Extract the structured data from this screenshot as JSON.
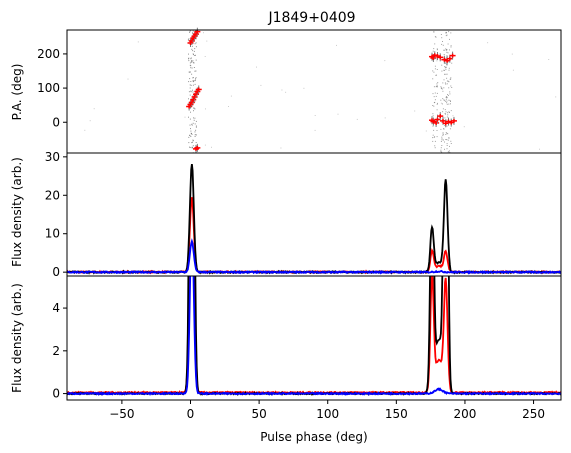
{
  "chart_data": {
    "type": "line",
    "title": "J1849+0409",
    "xlabel": "Pulse phase (deg)",
    "xlim": [
      -90,
      270
    ],
    "xticks": [
      -50,
      0,
      50,
      100,
      150,
      200,
      250
    ],
    "panels": [
      {
        "name": "pa",
        "ylabel": "P.A. (deg)",
        "ylim": [
          -90,
          270
        ],
        "yticks": [
          0,
          100,
          200
        ],
        "series": [
          {
            "label_key": "pa_points",
            "color": "#ff0000",
            "points": [
              [
                0,
                232
              ],
              [
                1,
                238
              ],
              [
                2,
                246
              ],
              [
                3,
                252
              ],
              [
                4,
                258
              ],
              [
                5,
                265
              ],
              [
                -1,
                46
              ],
              [
                0,
                52
              ],
              [
                1,
                58
              ],
              [
                2,
                66
              ],
              [
                3,
                74
              ],
              [
                4,
                82
              ],
              [
                5,
                90
              ],
              [
                6,
                96
              ],
              [
                4,
                -78
              ],
              [
                5,
                -75
              ],
              [
                176,
                192
              ],
              [
                177,
                188
              ],
              [
                178,
                196
              ],
              [
                180,
                194
              ],
              [
                182,
                190
              ],
              [
                185,
                183
              ],
              [
                187,
                180
              ],
              [
                189,
                186
              ],
              [
                191,
                195
              ],
              [
                176,
                6
              ],
              [
                177,
                2
              ],
              [
                179,
                -2
              ],
              [
                180,
                8
              ],
              [
                182,
                18
              ],
              [
                184,
                4
              ],
              [
                186,
                -3
              ],
              [
                188,
                2
              ],
              [
                190,
                -1
              ],
              [
                192,
                4
              ]
            ]
          }
        ]
      },
      {
        "name": "profile",
        "ylabel": "Flux density (arb.)",
        "ylim": [
          -1,
          31
        ],
        "yticks": [
          0,
          10,
          20,
          30
        ],
        "series": [
          {
            "name_key": "I",
            "color": "#000000",
            "peaks": [
              [
                1,
                28.3,
                1.4
              ],
              [
                176,
                11.2,
                1.2
              ],
              [
                186,
                23.6,
                1.3
              ],
              [
                181,
                2.5,
                3
              ]
            ]
          },
          {
            "name_key": "L",
            "color": "#ff0000",
            "peaks": [
              [
                1,
                19.4,
                1.4
              ],
              [
                176,
                5.2,
                1.2
              ],
              [
                186,
                5.0,
                1.3
              ],
              [
                181,
                1.5,
                3
              ]
            ]
          },
          {
            "name_key": "V",
            "color": "#0000ff",
            "peaks": [
              [
                1,
                8.0,
                1.4
              ],
              [
                181,
                0.2,
                3
              ]
            ]
          }
        ]
      },
      {
        "name": "zoom",
        "ylabel": "Flux density (arb.)",
        "ylim": [
          -0.3,
          5.5
        ],
        "yticks": [
          0,
          2,
          4
        ],
        "series": [
          {
            "name_key": "I",
            "color": "#000000",
            "peaks": [
              [
                1,
                28.3,
                1.4
              ],
              [
                176,
                11.2,
                1.2
              ],
              [
                186,
                23.6,
                1.3
              ],
              [
                181,
                2.5,
                3
              ]
            ]
          },
          {
            "name_key": "L",
            "color": "#ff0000",
            "peaks": [
              [
                1,
                19.4,
                1.4
              ],
              [
                176,
                5.2,
                1.2
              ],
              [
                186,
                5.0,
                1.3
              ],
              [
                181,
                1.5,
                3
              ]
            ]
          },
          {
            "name_key": "V",
            "color": "#0000ff",
            "peaks": [
              [
                1,
                8.0,
                1.4
              ],
              [
                181,
                0.2,
                3
              ]
            ]
          }
        ]
      }
    ]
  }
}
